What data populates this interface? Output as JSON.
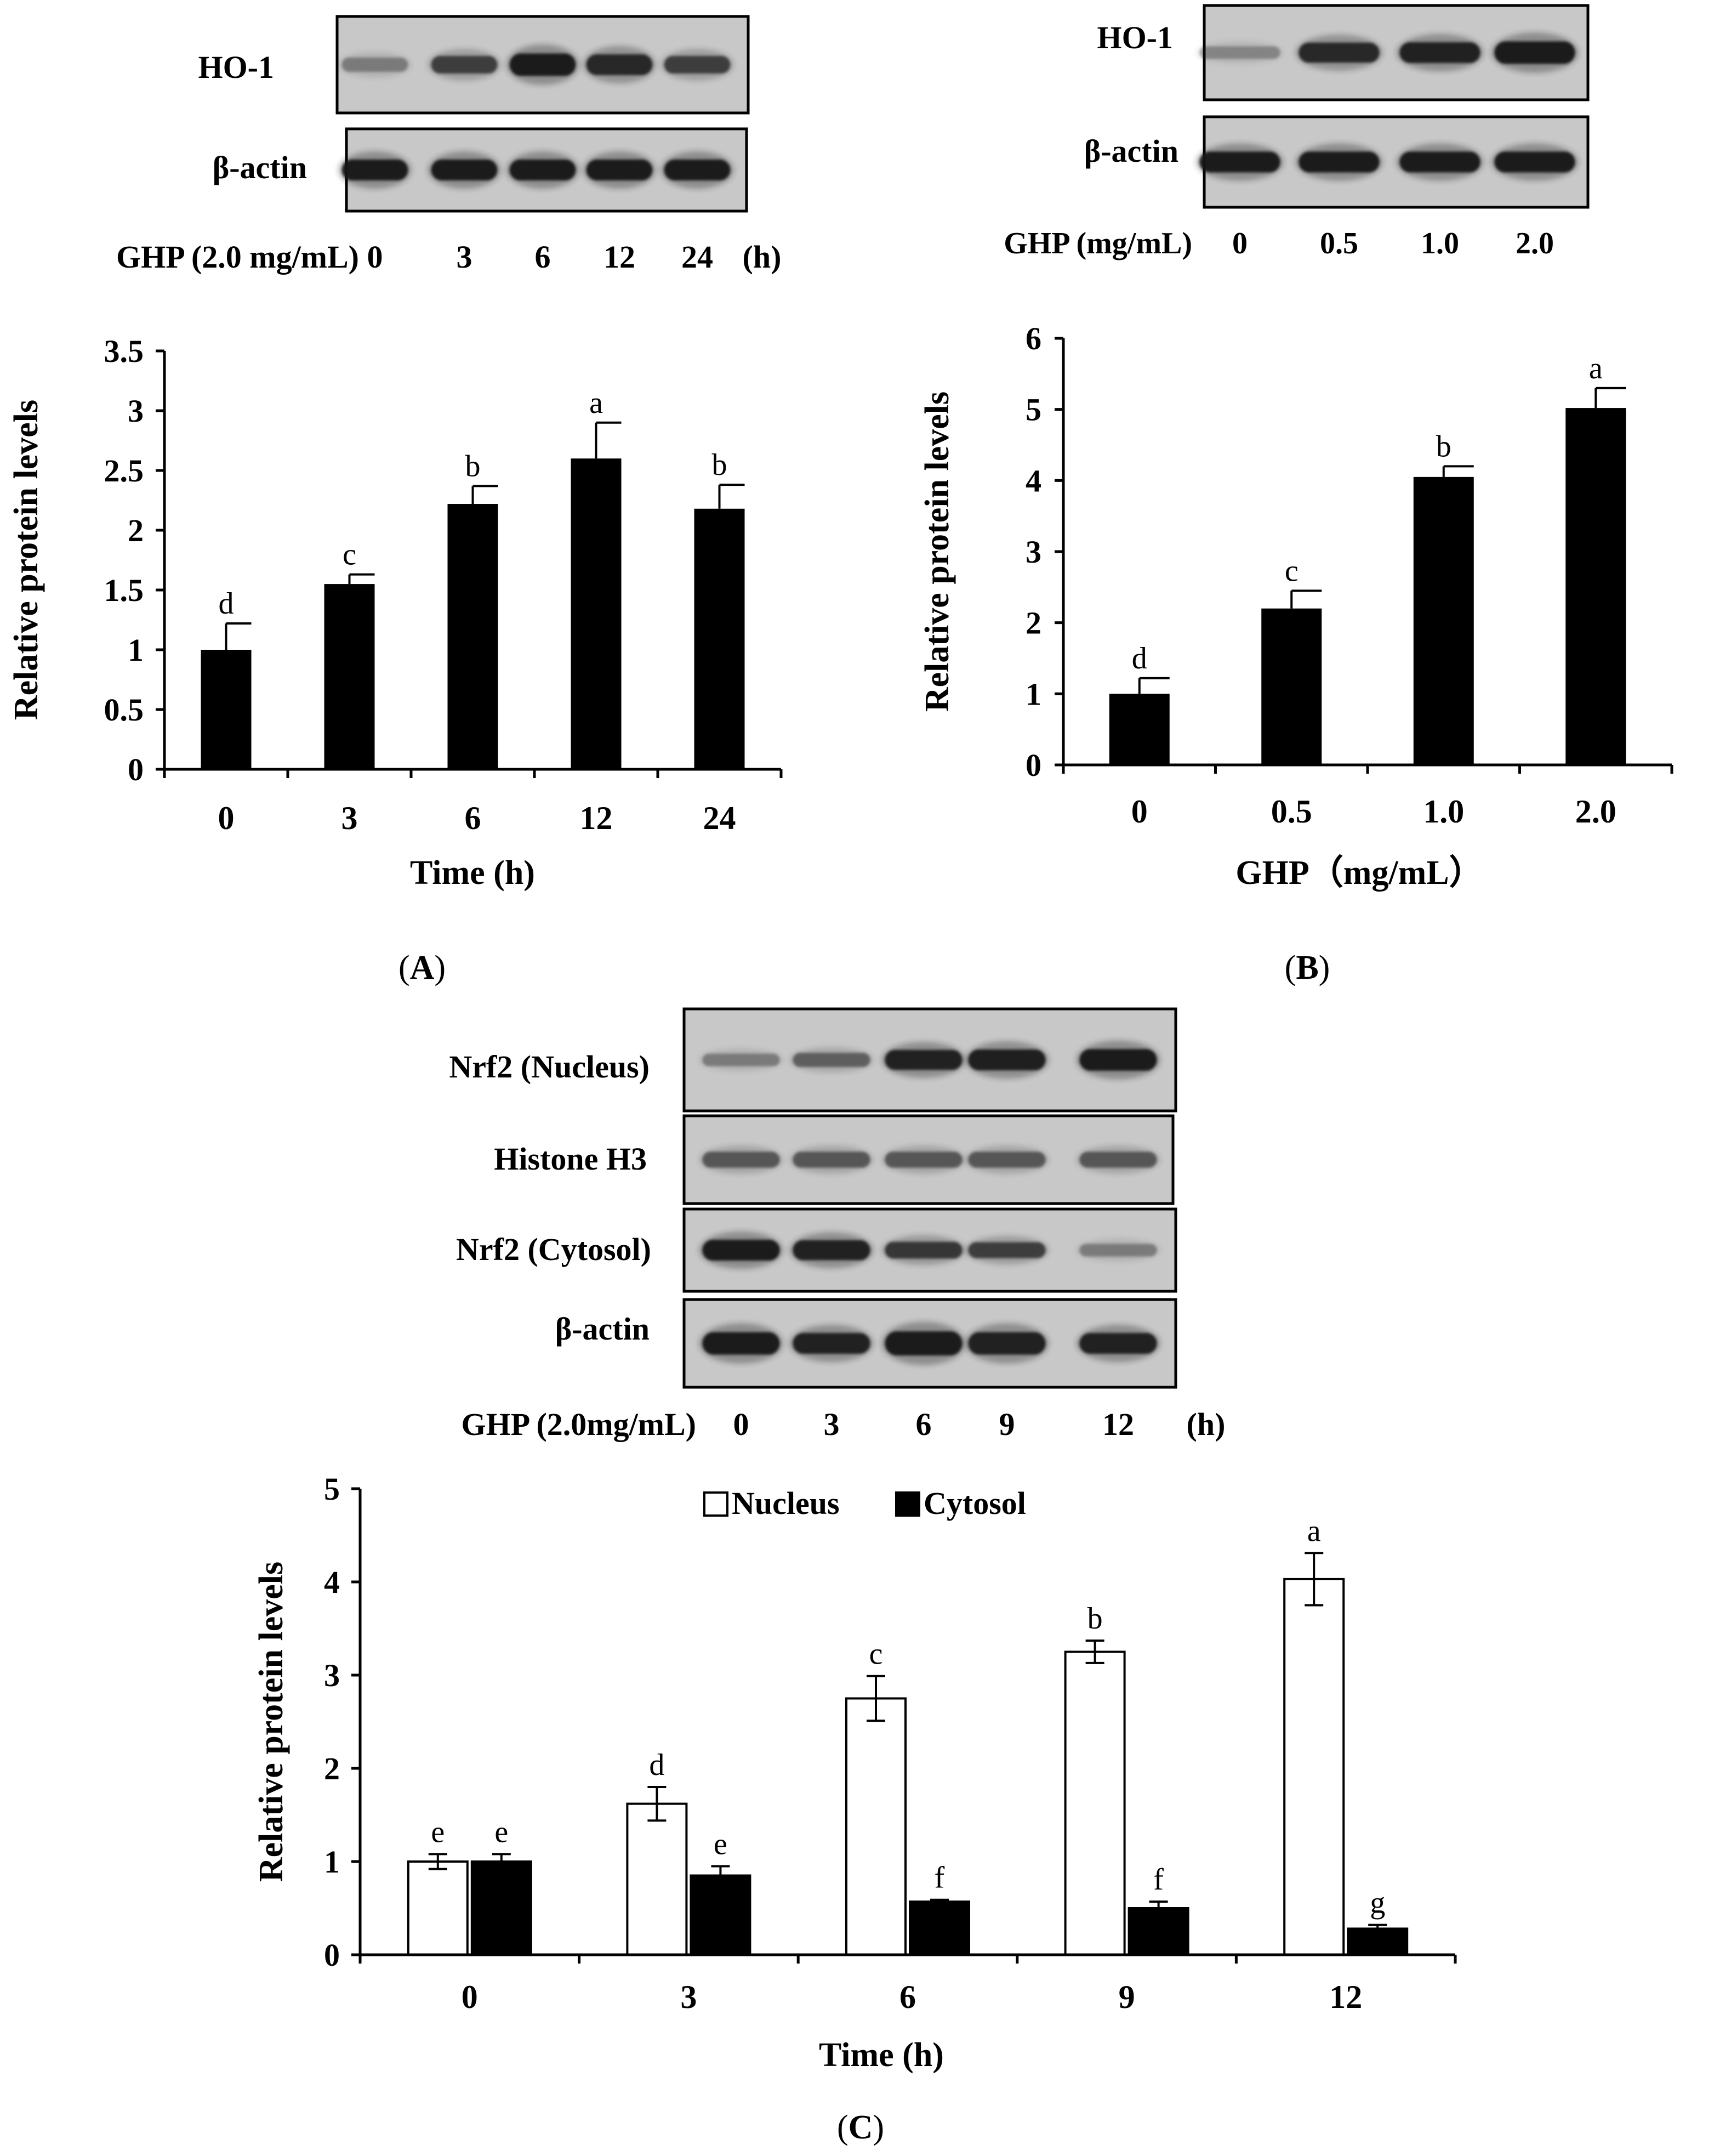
{
  "colors": {
    "bar_black": "#000000",
    "bar_white": "#ffffff",
    "blot_bg": "#c9c9c9",
    "band_dark": "#151515"
  },
  "panels": {
    "A": {
      "caption_open": "(",
      "caption_letter": "A",
      "caption_close": ")",
      "blots": [
        {
          "label": "HO-1",
          "band_intensity": [
            0.35,
            0.7,
            0.95,
            0.85,
            0.7
          ],
          "band_thickness": [
            0.4,
            0.6,
            0.9,
            0.8,
            0.6
          ]
        },
        {
          "label": "β-actin",
          "band_intensity": [
            0.95,
            0.95,
            0.95,
            0.95,
            0.95
          ],
          "band_thickness": [
            0.8,
            0.8,
            0.8,
            0.8,
            0.8
          ]
        }
      ],
      "lane_header": "GHP (2.0 mg/mL)",
      "lane_labels": [
        "0",
        "3",
        "6",
        "12",
        "24"
      ],
      "lane_unit": "(h)"
    },
    "B": {
      "caption_open": "(",
      "caption_letter": "B",
      "caption_close": ")",
      "blots": [
        {
          "label": "HO-1",
          "band_intensity": [
            0.3,
            0.85,
            0.9,
            0.95
          ],
          "band_thickness": [
            0.3,
            0.75,
            0.8,
            0.9
          ]
        },
        {
          "label": "β-actin",
          "band_intensity": [
            0.95,
            0.95,
            0.95,
            0.95
          ],
          "band_thickness": [
            0.8,
            0.8,
            0.8,
            0.8
          ]
        }
      ],
      "lane_header": "GHP (mg/mL)",
      "lane_labels": [
        "0",
        "0.5",
        "1.0",
        "2.0"
      ],
      "lane_unit": ""
    },
    "C": {
      "caption_open": "(",
      "caption_letter": "C",
      "caption_close": ")",
      "blots": [
        {
          "label": "Nrf2 (Nucleus)",
          "band_intensity": [
            0.35,
            0.5,
            0.9,
            0.92,
            0.95
          ],
          "band_thickness": [
            0.3,
            0.4,
            0.75,
            0.8,
            0.85
          ]
        },
        {
          "label": "Histone H3",
          "band_intensity": [
            0.55,
            0.55,
            0.55,
            0.55,
            0.55
          ],
          "band_thickness": [
            0.5,
            0.5,
            0.5,
            0.5,
            0.5
          ]
        },
        {
          "label": "Nrf2 (Cytosol)",
          "band_intensity": [
            0.95,
            0.9,
            0.75,
            0.7,
            0.35
          ],
          "band_thickness": [
            0.8,
            0.75,
            0.55,
            0.5,
            0.3
          ]
        },
        {
          "label": "β-actin",
          "band_intensity": [
            0.95,
            0.9,
            0.95,
            0.9,
            0.9
          ],
          "band_thickness": [
            0.9,
            0.8,
            1.0,
            0.9,
            0.8
          ]
        }
      ],
      "lane_header": "GHP (2.0mg/mL)",
      "lane_labels": [
        "0",
        "3",
        "6",
        "9",
        "12"
      ],
      "lane_unit": "(h)"
    }
  },
  "chart_data": [
    {
      "id": "A",
      "type": "bar",
      "categories": [
        "0",
        "3",
        "6",
        "12",
        "24"
      ],
      "values": [
        1.0,
        1.55,
        2.22,
        2.6,
        2.18
      ],
      "errors": [
        0.22,
        0.08,
        0.15,
        0.3,
        0.2
      ],
      "letters": [
        "d",
        "c",
        "b",
        "a",
        "b"
      ],
      "xlabel": "Time (h)",
      "ylabel": "Relative protein levels",
      "ylim": [
        0,
        3.5
      ],
      "yticks": [
        "0",
        "0.5",
        "1",
        "1.5",
        "2",
        "2.5",
        "3",
        "3.5"
      ]
    },
    {
      "id": "B",
      "type": "bar",
      "categories": [
        "0",
        "0.5",
        "1.0",
        "2.0"
      ],
      "values": [
        1.0,
        2.2,
        4.05,
        5.02
      ],
      "errors": [
        0.22,
        0.25,
        0.15,
        0.28
      ],
      "letters": [
        "d",
        "c",
        "b",
        "a"
      ],
      "xlabel": "GHP（mg/mL）",
      "ylabel": "Relative protein levels",
      "ylim": [
        0,
        6
      ],
      "yticks": [
        "0",
        "1",
        "2",
        "3",
        "4",
        "5",
        "6"
      ]
    },
    {
      "id": "C",
      "type": "bar",
      "categories": [
        "0",
        "3",
        "6",
        "9",
        "12"
      ],
      "series": [
        {
          "name": "Nucleus",
          "values": [
            1.0,
            1.62,
            2.75,
            3.25,
            4.03
          ],
          "errors": [
            0.08,
            0.18,
            0.24,
            0.12,
            0.28
          ],
          "letters": [
            "e",
            "d",
            "c",
            "b",
            "a"
          ]
        },
        {
          "name": "Cytosol",
          "values": [
            1.0,
            0.85,
            0.57,
            0.5,
            0.28
          ],
          "errors": [
            0.08,
            0.1,
            0.02,
            0.07,
            0.04
          ],
          "letters": [
            "e",
            "e",
            "f",
            "f",
            "g"
          ]
        }
      ],
      "legend_position": "top-center",
      "xlabel": "Time (h)",
      "ylabel": "Relative protein levels",
      "ylim": [
        0,
        5
      ],
      "yticks": [
        "0",
        "1",
        "2",
        "3",
        "4",
        "5"
      ]
    }
  ]
}
